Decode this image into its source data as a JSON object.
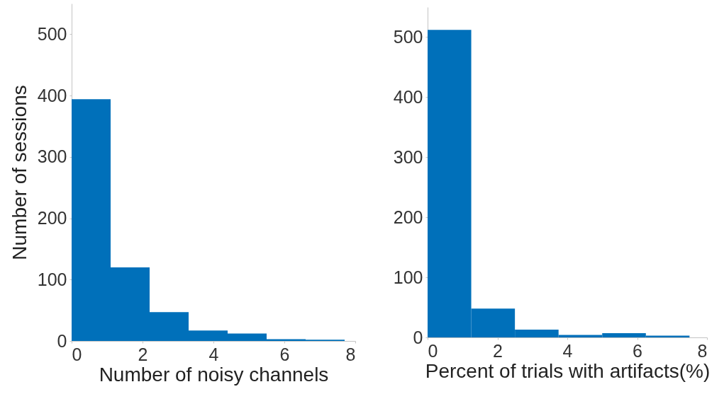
{
  "chart_data": [
    {
      "type": "histogram",
      "xlabel": "Number of noisy channels",
      "ylabel": "Number of sessions",
      "bins": [
        0,
        1.1,
        2.2,
        3.3,
        4.4,
        5.5,
        6.6,
        7.7
      ],
      "values": [
        394,
        120,
        47,
        17,
        12,
        3,
        2
      ],
      "color": "#0070ba",
      "xlim": [
        0,
        8
      ],
      "xticks": [
        0,
        2,
        4,
        6,
        8
      ],
      "ylim": [
        0,
        550
      ],
      "yticks": [
        0,
        100,
        200,
        300,
        400,
        500
      ]
    },
    {
      "type": "histogram",
      "xlabel": "Percent of trials with artifacts(%)",
      "bins": [
        0,
        1.25,
        2.5,
        3.75,
        5,
        6.25,
        7.5
      ],
      "values": [
        512,
        48,
        13,
        4,
        7,
        3
      ],
      "color": "#0070ba",
      "xlim": [
        0,
        8
      ],
      "xticks": [
        0,
        2,
        4,
        6,
        8
      ],
      "ylim": [
        0,
        550
      ],
      "yticks": [
        0,
        100,
        200,
        300,
        400,
        500
      ]
    }
  ]
}
